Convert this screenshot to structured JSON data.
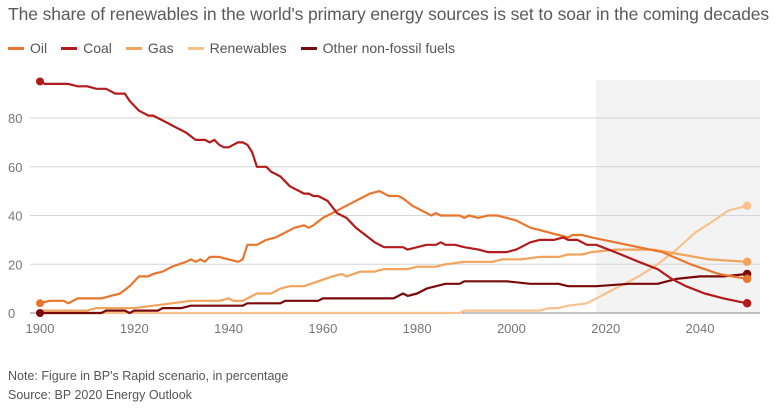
{
  "chart_data": {
    "type": "line",
    "title": "The share of renewables in the world's primary energy sources is set to soar in the coming decades",
    "xlabel": "",
    "ylabel": "",
    "xlim": [
      1900,
      2050
    ],
    "ylim": [
      0,
      95
    ],
    "x_ticks": [
      "1900",
      "1920",
      "1940",
      "1960",
      "1980",
      "2000",
      "2020",
      "2040"
    ],
    "y_ticks": [
      "0",
      "20",
      "40",
      "60",
      "80"
    ],
    "grid": "horizontal",
    "legend_placement": "top-left",
    "shaded_region": {
      "from": 2018,
      "to": 2050,
      "meaning": "projection"
    },
    "series": [
      {
        "name": "Oil",
        "color": "#e8762d",
        "points": [
          [
            1900,
            4
          ],
          [
            1902,
            5
          ],
          [
            1905,
            5
          ],
          [
            1906,
            4
          ],
          [
            1908,
            6
          ],
          [
            1913,
            6
          ],
          [
            1915,
            7
          ],
          [
            1917,
            8
          ],
          [
            1919,
            11
          ],
          [
            1921,
            15
          ],
          [
            1923,
            15
          ],
          [
            1924,
            16
          ],
          [
            1926,
            17
          ],
          [
            1928,
            19
          ],
          [
            1931,
            21
          ],
          [
            1932,
            22
          ],
          [
            1933,
            21
          ],
          [
            1934,
            22
          ],
          [
            1935,
            21
          ],
          [
            1936,
            23
          ],
          [
            1938,
            23
          ],
          [
            1940,
            22
          ],
          [
            1942,
            21
          ],
          [
            1943,
            22
          ],
          [
            1944,
            28
          ],
          [
            1946,
            28
          ],
          [
            1948,
            30
          ],
          [
            1950,
            31
          ],
          [
            1952,
            33
          ],
          [
            1954,
            35
          ],
          [
            1956,
            36
          ],
          [
            1957,
            35
          ],
          [
            1958,
            36
          ],
          [
            1960,
            39
          ],
          [
            1962,
            41
          ],
          [
            1964,
            43
          ],
          [
            1966,
            45
          ],
          [
            1968,
            47
          ],
          [
            1970,
            49
          ],
          [
            1972,
            50
          ],
          [
            1974,
            48
          ],
          [
            1976,
            48
          ],
          [
            1977,
            47
          ],
          [
            1979,
            44
          ],
          [
            1981,
            42
          ],
          [
            1983,
            40
          ],
          [
            1984,
            41
          ],
          [
            1985,
            40
          ],
          [
            1989,
            40
          ],
          [
            1990,
            39
          ],
          [
            1991,
            40
          ],
          [
            1993,
            39
          ],
          [
            1995,
            40
          ],
          [
            1997,
            40
          ],
          [
            1999,
            39
          ],
          [
            2001,
            38
          ],
          [
            2002,
            37
          ],
          [
            2004,
            35
          ],
          [
            2006,
            34
          ],
          [
            2008,
            33
          ],
          [
            2010,
            32
          ],
          [
            2012,
            31
          ],
          [
            2013,
            32
          ],
          [
            2015,
            32
          ],
          [
            2017,
            31
          ],
          [
            2022,
            29
          ],
          [
            2027,
            27
          ],
          [
            2032,
            25
          ],
          [
            2038,
            20
          ],
          [
            2044,
            16
          ],
          [
            2050,
            14
          ]
        ]
      },
      {
        "name": "Coal",
        "color": "#b31b1b",
        "points": [
          [
            1900,
            95
          ],
          [
            1901,
            94
          ],
          [
            1906,
            94
          ],
          [
            1908,
            93
          ],
          [
            1910,
            93
          ],
          [
            1912,
            92
          ],
          [
            1914,
            92
          ],
          [
            1916,
            90
          ],
          [
            1918,
            90
          ],
          [
            1919,
            87
          ],
          [
            1921,
            83
          ],
          [
            1923,
            81
          ],
          [
            1924,
            81
          ],
          [
            1926,
            79
          ],
          [
            1929,
            76
          ],
          [
            1931,
            74
          ],
          [
            1933,
            71
          ],
          [
            1935,
            71
          ],
          [
            1936,
            70
          ],
          [
            1937,
            71
          ],
          [
            1938,
            69
          ],
          [
            1939,
            68
          ],
          [
            1940,
            68
          ],
          [
            1941,
            69
          ],
          [
            1942,
            70
          ],
          [
            1943,
            70
          ],
          [
            1944,
            69
          ],
          [
            1945,
            66
          ],
          [
            1946,
            60
          ],
          [
            1948,
            60
          ],
          [
            1949,
            58
          ],
          [
            1951,
            56
          ],
          [
            1953,
            52
          ],
          [
            1955,
            50
          ],
          [
            1956,
            49
          ],
          [
            1957,
            49
          ],
          [
            1958,
            48
          ],
          [
            1959,
            48
          ],
          [
            1961,
            46
          ],
          [
            1963,
            41
          ],
          [
            1965,
            39
          ],
          [
            1967,
            35
          ],
          [
            1969,
            32
          ],
          [
            1971,
            29
          ],
          [
            1973,
            27
          ],
          [
            1977,
            27
          ],
          [
            1978,
            26
          ],
          [
            1980,
            27
          ],
          [
            1982,
            28
          ],
          [
            1984,
            28
          ],
          [
            1985,
            29
          ],
          [
            1986,
            28
          ],
          [
            1988,
            28
          ],
          [
            1990,
            27
          ],
          [
            1993,
            26
          ],
          [
            1995,
            25
          ],
          [
            1999,
            25
          ],
          [
            2001,
            26
          ],
          [
            2002,
            27
          ],
          [
            2004,
            29
          ],
          [
            2006,
            30
          ],
          [
            2009,
            30
          ],
          [
            2011,
            31
          ],
          [
            2012,
            30
          ],
          [
            2014,
            30
          ],
          [
            2016,
            28
          ],
          [
            2018,
            28
          ],
          [
            2022,
            25
          ],
          [
            2027,
            21
          ],
          [
            2031,
            18
          ],
          [
            2034,
            14
          ],
          [
            2037,
            11
          ],
          [
            2041,
            8
          ],
          [
            2045,
            6
          ],
          [
            2050,
            4
          ]
        ]
      },
      {
        "name": "Gas",
        "color": "#f2a35e",
        "points": [
          [
            1900,
            1
          ],
          [
            1910,
            1
          ],
          [
            1912,
            2
          ],
          [
            1920,
            2
          ],
          [
            1924,
            3
          ],
          [
            1928,
            4
          ],
          [
            1932,
            5
          ],
          [
            1938,
            5
          ],
          [
            1940,
            6
          ],
          [
            1941,
            5
          ],
          [
            1943,
            5
          ],
          [
            1944,
            6
          ],
          [
            1946,
            8
          ],
          [
            1949,
            8
          ],
          [
            1951,
            10
          ],
          [
            1953,
            11
          ],
          [
            1956,
            11
          ],
          [
            1959,
            13
          ],
          [
            1962,
            15
          ],
          [
            1964,
            16
          ],
          [
            1965,
            15
          ],
          [
            1968,
            17
          ],
          [
            1971,
            17
          ],
          [
            1973,
            18
          ],
          [
            1978,
            18
          ],
          [
            1980,
            19
          ],
          [
            1984,
            19
          ],
          [
            1986,
            20
          ],
          [
            1990,
            21
          ],
          [
            1996,
            21
          ],
          [
            1998,
            22
          ],
          [
            2002,
            22
          ],
          [
            2006,
            23
          ],
          [
            2010,
            23
          ],
          [
            2012,
            24
          ],
          [
            2015,
            24
          ],
          [
            2017,
            25
          ],
          [
            2022,
            26
          ],
          [
            2027,
            26
          ],
          [
            2030,
            26
          ],
          [
            2036,
            24
          ],
          [
            2042,
            22
          ],
          [
            2050,
            21
          ]
        ]
      },
      {
        "name": "Renewables",
        "color": "#f8c28c",
        "points": [
          [
            1900,
            0
          ],
          [
            1989,
            0
          ],
          [
            1990,
            1
          ],
          [
            2006,
            1
          ],
          [
            2008,
            2
          ],
          [
            2010,
            2
          ],
          [
            2012,
            3
          ],
          [
            2016,
            4
          ],
          [
            2018,
            6
          ],
          [
            2022,
            10
          ],
          [
            2027,
            15
          ],
          [
            2031,
            20
          ],
          [
            2035,
            26
          ],
          [
            2039,
            33
          ],
          [
            2043,
            38
          ],
          [
            2046,
            42
          ],
          [
            2050,
            44
          ]
        ]
      },
      {
        "name": "Other non-fossil fuels",
        "color": "#7a0a0a",
        "points": [
          [
            1900,
            0
          ],
          [
            1913,
            0
          ],
          [
            1914,
            1
          ],
          [
            1918,
            1
          ],
          [
            1919,
            0
          ],
          [
            1920,
            1
          ],
          [
            1925,
            1
          ],
          [
            1926,
            2
          ],
          [
            1930,
            2
          ],
          [
            1932,
            3
          ],
          [
            1943,
            3
          ],
          [
            1944,
            4
          ],
          [
            1951,
            4
          ],
          [
            1952,
            5
          ],
          [
            1959,
            5
          ],
          [
            1960,
            6
          ],
          [
            1975,
            6
          ],
          [
            1977,
            8
          ],
          [
            1978,
            7
          ],
          [
            1980,
            8
          ],
          [
            1982,
            10
          ],
          [
            1984,
            11
          ],
          [
            1986,
            12
          ],
          [
            1989,
            12
          ],
          [
            1990,
            13
          ],
          [
            1999,
            13
          ],
          [
            2004,
            12
          ],
          [
            2010,
            12
          ],
          [
            2012,
            11
          ],
          [
            2018,
            11
          ],
          [
            2025,
            12
          ],
          [
            2031,
            12
          ],
          [
            2035,
            14
          ],
          [
            2040,
            15
          ],
          [
            2045,
            15
          ],
          [
            2050,
            16
          ]
        ]
      }
    ]
  },
  "notes": {
    "note": "Note: Figure in BP's Rapid scenario, in percentage",
    "source": "Source: BP 2020 Energy Outlook"
  }
}
